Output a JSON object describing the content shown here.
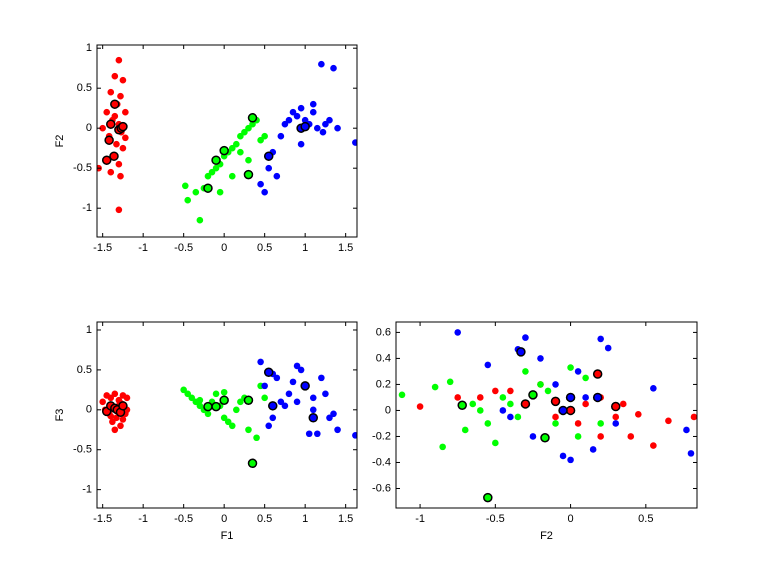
{
  "chart_data": [
    {
      "type": "scatter",
      "ylabel": "F2",
      "xlim": [
        -1.57,
        1.64
      ],
      "ylim": [
        -1.36,
        1.04
      ],
      "xticks": [
        -1.5,
        -1,
        -0.5,
        0,
        0.5,
        1,
        1.5
      ],
      "yticks": [
        -1,
        -0.5,
        0,
        0.5,
        1
      ],
      "series": [
        {
          "color": "#ff0000",
          "x": [
            -1.3,
            -1.25,
            -1.35,
            -1.4,
            -1.28,
            -1.32,
            -1.22,
            -1.45,
            -1.38,
            -1.3,
            -1.27,
            -1.5,
            -1.42,
            -1.33,
            -1.25,
            -1.36,
            -1.3,
            -1.55,
            -1.4,
            -1.28,
            -1.45,
            -1.3,
            -1.35,
            -1.22
          ],
          "y": [
            0.85,
            0.6,
            0.65,
            0.45,
            0.4,
            0.3,
            0.2,
            0.2,
            0.1,
            0.05,
            -0.05,
            0,
            -0.1,
            -0.2,
            -0.25,
            -0.35,
            -0.45,
            -0.5,
            -0.55,
            -0.6,
            -0.4,
            -1.02,
            0.15,
            -0.12
          ]
        },
        {
          "color": "#00ff00",
          "x": [
            -0.48,
            -0.45,
            -0.3,
            -0.35,
            -0.2,
            -0.15,
            -0.1,
            -0.05,
            0,
            0.05,
            0.1,
            0.15,
            0.2,
            0.25,
            0.3,
            0.35,
            0.4,
            0.45,
            0.1,
            -0.05,
            0.2,
            0.3,
            -0.25,
            0.5
          ],
          "y": [
            -0.72,
            -0.9,
            -1.15,
            -0.8,
            -0.6,
            -0.55,
            -0.5,
            -0.45,
            -0.35,
            -0.3,
            -0.25,
            -0.2,
            -0.1,
            -0.05,
            0,
            0.05,
            0.1,
            -0.15,
            -0.6,
            -0.8,
            -0.3,
            -0.4,
            -0.75,
            -0.1
          ]
        },
        {
          "color": "#0000ff",
          "x": [
            0.45,
            0.55,
            0.6,
            0.7,
            0.75,
            0.8,
            0.85,
            0.9,
            0.95,
            1.0,
            1.05,
            1.1,
            1.15,
            1.2,
            1.25,
            1.3,
            1.35,
            1.4,
            1.62,
            1.22,
            0.5,
            0.65,
            0.95,
            1.1
          ],
          "y": [
            -0.7,
            -0.5,
            -0.3,
            -0.1,
            0.05,
            0.1,
            0.2,
            0.15,
            0.25,
            0.1,
            0.05,
            0.3,
            0.0,
            0.8,
            0.05,
            0.1,
            0.75,
            0.0,
            -0.18,
            -0.05,
            -0.8,
            -0.6,
            -0.2,
            0.2
          ]
        },
        {
          "color": "#ff0000",
          "edgecolor": "#000000",
          "x": [
            -1.35,
            -1.4,
            -1.3,
            -1.42,
            -1.36,
            -1.45,
            -1.27,
            -1.25
          ],
          "y": [
            0.3,
            0.05,
            -0.02,
            -0.15,
            -0.35,
            -0.4,
            0.0,
            0.02
          ]
        },
        {
          "color": "#00ff00",
          "edgecolor": "#000000",
          "x": [
            -0.2,
            -0.1,
            0,
            0.3,
            0.35
          ],
          "y": [
            -0.75,
            -0.4,
            -0.28,
            -0.58,
            0.13
          ]
        },
        {
          "color": "#0000ff",
          "edgecolor": "#000000",
          "x": [
            0.55,
            0.95,
            1.0
          ],
          "y": [
            -0.35,
            0.0,
            0.02
          ]
        }
      ]
    },
    {
      "type": "scatter",
      "xlabel": "F1",
      "ylabel": "F3",
      "xlim": [
        -1.57,
        1.64
      ],
      "ylim": [
        -1.23,
        1.1
      ],
      "xticks": [
        -1.5,
        -1,
        -0.5,
        0,
        0.5,
        1,
        1.5
      ],
      "yticks": [
        -1,
        -0.5,
        0,
        0.5,
        1
      ],
      "series": [
        {
          "color": "#ff0000",
          "x": [
            -1.5,
            -1.45,
            -1.4,
            -1.35,
            -1.3,
            -1.25,
            -1.2,
            -1.42,
            -1.33,
            -1.28,
            -1.38,
            -1.22,
            -1.47,
            -1.3,
            -1.35,
            -1.27,
            -1.4,
            -1.25,
            -1.32,
            -1.2
          ],
          "y": [
            0.1,
            0.18,
            0.15,
            0.2,
            0.12,
            0.18,
            0.15,
            -0.05,
            -0.1,
            -0.2,
            -0.15,
            -0.05,
            0.0,
            0.05,
            -0.25,
            0.08,
            -0.08,
            -0.12,
            0.02,
            0.0
          ]
        },
        {
          "color": "#00ff00",
          "x": [
            -0.5,
            -0.45,
            -0.4,
            -0.35,
            -0.3,
            -0.25,
            -0.2,
            -0.15,
            -0.1,
            -0.05,
            0,
            0.05,
            0.1,
            0.15,
            0.2,
            0.25,
            0.3,
            0.4,
            0.45,
            0.5,
            0.0,
            -0.3
          ],
          "y": [
            0.25,
            0.2,
            0.15,
            0.1,
            0.05,
            0.0,
            -0.05,
            0.1,
            0.2,
            0.05,
            -0.1,
            -0.15,
            -0.2,
            0.0,
            0.1,
            0.15,
            -0.25,
            -0.35,
            0.3,
            0.15,
            0.22,
            0.12
          ]
        },
        {
          "color": "#0000ff",
          "x": [
            0.45,
            0.5,
            0.55,
            0.6,
            0.65,
            0.7,
            0.75,
            0.8,
            0.85,
            0.9,
            0.95,
            1.0,
            1.05,
            1.1,
            1.15,
            1.2,
            1.25,
            1.3,
            1.35,
            1.4,
            1.62,
            0.6,
            0.9,
            1.1
          ],
          "y": [
            0.6,
            0.3,
            -0.2,
            0.45,
            0.4,
            0.1,
            0.05,
            0.2,
            0.35,
            0.55,
            0.5,
            0.3,
            -0.3,
            0.0,
            -0.3,
            0.4,
            0.2,
            -0.1,
            -0.05,
            -0.25,
            -0.32,
            -0.1,
            0.1,
            0.15
          ]
        },
        {
          "color": "#ff0000",
          "edgecolor": "#000000",
          "x": [
            -1.45,
            -1.4,
            -1.35,
            -1.32,
            -1.28,
            -1.25
          ],
          "y": [
            -0.02,
            0.05,
            0.02,
            0.0,
            -0.03,
            0.05
          ]
        },
        {
          "color": "#00ff00",
          "edgecolor": "#000000",
          "x": [
            -0.2,
            -0.1,
            0,
            0.3,
            0.35
          ],
          "y": [
            0.04,
            0.04,
            0.12,
            0.12,
            -0.67
          ]
        },
        {
          "color": "#0000ff",
          "edgecolor": "#000000",
          "x": [
            0.55,
            0.6,
            1.0,
            1.1
          ],
          "y": [
            0.47,
            0.05,
            0.3,
            -0.1
          ]
        }
      ]
    },
    {
      "type": "scatter",
      "xlabel": "F2",
      "xlim": [
        -1.16,
        0.84
      ],
      "ylim": [
        -0.75,
        0.68
      ],
      "xticks": [
        -1,
        -0.5,
        0,
        0.5
      ],
      "yticks": [
        -0.6,
        -0.4,
        -0.2,
        0,
        0.2,
        0.4,
        0.6
      ],
      "series": [
        {
          "color": "#ff0000",
          "x": [
            -1.0,
            -0.75,
            -0.6,
            -0.4,
            -0.3,
            -0.2,
            -0.1,
            0,
            0.05,
            0.1,
            0.2,
            0.3,
            0.35,
            0.4,
            0.45,
            0.55,
            0.65,
            0.82,
            -0.5,
            0.2
          ],
          "y": [
            0.03,
            0.1,
            0.1,
            0.15,
            0.05,
            0.2,
            -0.05,
            0.0,
            -0.1,
            0.05,
            0.1,
            -0.05,
            0.05,
            -0.2,
            -0.03,
            -0.27,
            -0.08,
            -0.05,
            0.15,
            -0.2
          ]
        },
        {
          "color": "#00ff00",
          "x": [
            -1.12,
            -0.9,
            -0.85,
            -0.8,
            -0.7,
            -0.6,
            -0.5,
            -0.45,
            -0.4,
            -0.3,
            -0.2,
            -0.1,
            0,
            0.1,
            0.2,
            -0.65,
            -0.55,
            -0.35,
            -0.15,
            0.05
          ],
          "y": [
            0.12,
            0.18,
            -0.28,
            0.22,
            -0.15,
            0.0,
            -0.25,
            0.1,
            0.05,
            0.3,
            0.2,
            -0.1,
            0.33,
            0.25,
            -0.1,
            0.05,
            -0.1,
            -0.05,
            0.15,
            -0.2
          ]
        },
        {
          "color": "#0000ff",
          "x": [
            -0.75,
            -0.55,
            -0.45,
            -0.35,
            -0.3,
            -0.25,
            -0.2,
            -0.1,
            -0.05,
            0,
            0.05,
            0.1,
            0.15,
            0.2,
            0.25,
            0.3,
            0.55,
            0.77,
            0.8,
            -0.4
          ],
          "y": [
            0.6,
            0.35,
            0.0,
            0.47,
            0.56,
            -0.2,
            0.4,
            0.2,
            -0.35,
            -0.38,
            0.3,
            0.1,
            -0.3,
            0.55,
            0.48,
            -0.1,
            0.17,
            -0.15,
            -0.33,
            -0.05
          ]
        },
        {
          "color": "#ff0000",
          "edgecolor": "#000000",
          "x": [
            -0.3,
            -0.1,
            0.0,
            0.18,
            0.3
          ],
          "y": [
            0.05,
            0.07,
            0.0,
            0.28,
            0.03
          ]
        },
        {
          "color": "#00ff00",
          "edgecolor": "#000000",
          "x": [
            -0.72,
            -0.25,
            -0.17,
            -0.55
          ],
          "y": [
            0.04,
            0.12,
            -0.21,
            -0.67
          ]
        },
        {
          "color": "#0000ff",
          "edgecolor": "#000000",
          "x": [
            -0.33,
            -0.05,
            0,
            0.18
          ],
          "y": [
            0.45,
            0.0,
            0.1,
            0.1
          ]
        }
      ]
    }
  ]
}
